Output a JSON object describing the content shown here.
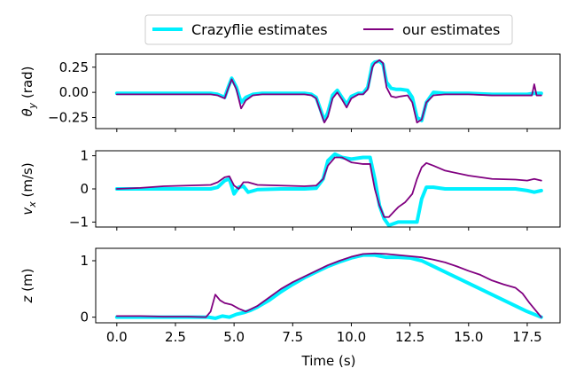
{
  "colors": {
    "crazyflie": "#00f0ff",
    "ours": "#800080"
  },
  "legend": {
    "crazyflie_label": "Crazyflie estimates",
    "ours_label": "our estimates"
  },
  "xlabel": "Time (s)",
  "chart_data": [
    {
      "type": "line",
      "ylabel": "θ_y (rad)",
      "ylabel_main": "θ",
      "ylabel_sub": "y",
      "ylabel_unit": " (rad)",
      "xlim": [
        -0.9,
        18.9
      ],
      "ylim": [
        -0.36,
        0.38
      ],
      "xticks": [
        0.0,
        2.5,
        5.0,
        7.5,
        10.0,
        12.5,
        15.0,
        17.5
      ],
      "yticks": [
        0.25,
        0.0,
        -0.25
      ],
      "ytick_labels": [
        "0.25",
        "0.00",
        "−0.25"
      ],
      "show_xtick_labels": false,
      "series": [
        {
          "name": "Crazyflie estimates",
          "x": [
            0.0,
            4.0,
            4.3,
            4.6,
            4.75,
            4.9,
            5.1,
            5.3,
            5.5,
            5.8,
            6.2,
            6.6,
            7.0,
            7.5,
            8.0,
            8.3,
            8.5,
            8.7,
            8.85,
            9.0,
            9.2,
            9.4,
            9.6,
            9.8,
            10.0,
            10.3,
            10.5,
            10.7,
            10.9,
            11.0,
            11.2,
            11.35,
            11.5,
            11.7,
            11.9,
            12.1,
            12.4,
            12.6,
            12.8,
            13.0,
            13.2,
            13.5,
            14.0,
            15.0,
            16.0,
            17.0,
            17.5,
            17.8,
            18.1
          ],
          "y": [
            -0.01,
            -0.01,
            -0.02,
            -0.05,
            0.05,
            0.14,
            0.05,
            -0.1,
            -0.05,
            -0.02,
            -0.01,
            -0.01,
            -0.01,
            -0.01,
            -0.01,
            -0.02,
            -0.05,
            -0.18,
            -0.28,
            -0.2,
            -0.03,
            0.02,
            -0.05,
            -0.12,
            -0.04,
            -0.01,
            -0.01,
            0.05,
            0.28,
            0.3,
            0.31,
            0.28,
            0.1,
            0.04,
            0.03,
            0.03,
            0.02,
            -0.05,
            -0.25,
            -0.28,
            -0.1,
            0.0,
            -0.01,
            -0.01,
            -0.02,
            -0.02,
            -0.02,
            -0.01,
            -0.01
          ]
        },
        {
          "name": "our estimates",
          "x": [
            0.0,
            4.0,
            4.3,
            4.6,
            4.75,
            4.9,
            5.1,
            5.3,
            5.5,
            5.8,
            6.2,
            6.6,
            7.0,
            7.5,
            8.0,
            8.3,
            8.5,
            8.7,
            8.85,
            9.0,
            9.2,
            9.4,
            9.6,
            9.8,
            10.0,
            10.3,
            10.5,
            10.7,
            10.9,
            11.0,
            11.2,
            11.35,
            11.5,
            11.7,
            11.9,
            12.1,
            12.4,
            12.6,
            12.8,
            13.0,
            13.2,
            13.5,
            14.0,
            15.0,
            16.0,
            17.0,
            17.5,
            17.7,
            17.8,
            17.9,
            18.1
          ],
          "y": [
            -0.02,
            -0.02,
            -0.03,
            -0.06,
            0.04,
            0.13,
            0.03,
            -0.16,
            -0.08,
            -0.03,
            -0.02,
            -0.02,
            -0.02,
            -0.02,
            -0.02,
            -0.03,
            -0.06,
            -0.2,
            -0.3,
            -0.24,
            -0.06,
            0.0,
            -0.07,
            -0.15,
            -0.06,
            -0.02,
            -0.02,
            0.03,
            0.25,
            0.29,
            0.32,
            0.29,
            0.05,
            -0.04,
            -0.05,
            -0.04,
            -0.03,
            -0.1,
            -0.3,
            -0.27,
            -0.1,
            -0.03,
            -0.02,
            -0.02,
            -0.03,
            -0.03,
            -0.03,
            -0.03,
            0.08,
            -0.03,
            -0.03
          ]
        }
      ]
    },
    {
      "type": "line",
      "ylabel": "v_x (m/s)",
      "ylabel_main": "v",
      "ylabel_sub": "x",
      "ylabel_unit": " (m/s)",
      "xlim": [
        -0.9,
        18.9
      ],
      "ylim": [
        -1.15,
        1.15
      ],
      "xticks": [
        0.0,
        2.5,
        5.0,
        7.5,
        10.0,
        12.5,
        15.0,
        17.5
      ],
      "yticks": [
        1,
        0,
        -1
      ],
      "ytick_labels": [
        "1",
        "0",
        "−1"
      ],
      "show_xtick_labels": false,
      "series": [
        {
          "name": "Crazyflie estimates",
          "x": [
            0.0,
            3.0,
            4.0,
            4.3,
            4.6,
            4.8,
            5.0,
            5.2,
            5.4,
            5.6,
            6.0,
            7.0,
            8.0,
            8.5,
            8.8,
            9.0,
            9.3,
            9.6,
            10.0,
            10.5,
            10.8,
            11.0,
            11.2,
            11.4,
            11.6,
            11.8,
            12.0,
            12.3,
            12.6,
            12.8,
            13.0,
            13.2,
            13.5,
            14.0,
            15.0,
            16.0,
            17.0,
            17.5,
            17.8,
            18.1
          ],
          "y": [
            0.0,
            0.0,
            0.0,
            0.05,
            0.25,
            0.3,
            -0.15,
            0.05,
            0.08,
            -0.1,
            -0.02,
            0.0,
            0.0,
            0.02,
            0.3,
            0.85,
            1.05,
            0.95,
            0.9,
            0.95,
            0.95,
            0.3,
            -0.5,
            -0.9,
            -1.1,
            -1.05,
            -1.0,
            -1.0,
            -1.0,
            -1.0,
            -0.3,
            0.05,
            0.05,
            0.0,
            0.0,
            0.0,
            0.0,
            -0.05,
            -0.1,
            -0.05
          ]
        },
        {
          "name": "our estimates",
          "x": [
            0.0,
            1.0,
            2.0,
            3.0,
            4.0,
            4.3,
            4.6,
            4.8,
            5.0,
            5.2,
            5.4,
            5.6,
            6.0,
            7.0,
            8.0,
            8.5,
            8.8,
            9.0,
            9.3,
            9.6,
            10.0,
            10.5,
            10.8,
            11.0,
            11.2,
            11.4,
            11.6,
            11.8,
            12.0,
            12.3,
            12.6,
            12.8,
            13.0,
            13.2,
            13.5,
            14.0,
            15.0,
            16.0,
            17.0,
            17.5,
            17.8,
            18.1
          ],
          "y": [
            0.0,
            0.03,
            0.08,
            0.1,
            0.12,
            0.2,
            0.35,
            0.38,
            0.1,
            0.0,
            0.2,
            0.2,
            0.12,
            0.1,
            0.08,
            0.1,
            0.3,
            0.7,
            0.95,
            0.95,
            0.8,
            0.75,
            0.75,
            0.0,
            -0.5,
            -0.85,
            -0.85,
            -0.7,
            -0.55,
            -0.4,
            -0.15,
            0.3,
            0.65,
            0.78,
            0.7,
            0.55,
            0.4,
            0.3,
            0.28,
            0.25,
            0.3,
            0.25
          ]
        }
      ]
    },
    {
      "type": "line",
      "ylabel": "z (m)",
      "ylabel_main": "z",
      "ylabel_sub": "",
      "ylabel_unit": " (m)",
      "xlim": [
        -0.9,
        18.9
      ],
      "ylim": [
        -0.1,
        1.22
      ],
      "xticks": [
        0.0,
        2.5,
        5.0,
        7.5,
        10.0,
        12.5,
        15.0,
        17.5
      ],
      "xtick_labels": [
        "0.0",
        "2.5",
        "5.0",
        "7.5",
        "10.0",
        "12.5",
        "15.0",
        "17.5"
      ],
      "yticks": [
        1,
        0
      ],
      "ytick_labels": [
        "1",
        "0"
      ],
      "show_xtick_labels": true,
      "series": [
        {
          "name": "Crazyflie estimates",
          "x": [
            0.0,
            2.0,
            3.9,
            4.2,
            4.5,
            4.8,
            5.1,
            5.4,
            5.7,
            6.0,
            6.5,
            7.0,
            7.5,
            8.0,
            8.5,
            9.0,
            9.5,
            10.0,
            10.5,
            11.0,
            11.5,
            12.0,
            12.5,
            13.0,
            13.5,
            14.0,
            14.5,
            15.0,
            15.5,
            16.0,
            16.5,
            17.0,
            17.5,
            17.8,
            18.1
          ],
          "y": [
            0.0,
            0.0,
            0.0,
            -0.02,
            0.02,
            0.0,
            0.05,
            0.08,
            0.12,
            0.18,
            0.3,
            0.45,
            0.58,
            0.7,
            0.8,
            0.9,
            0.98,
            1.05,
            1.1,
            1.1,
            1.06,
            1.06,
            1.05,
            1.0,
            0.9,
            0.8,
            0.7,
            0.6,
            0.5,
            0.4,
            0.3,
            0.2,
            0.1,
            0.05,
            0.0
          ]
        },
        {
          "name": "our estimates",
          "x": [
            0.0,
            1.0,
            2.0,
            3.0,
            3.8,
            4.0,
            4.2,
            4.4,
            4.6,
            4.9,
            5.2,
            5.5,
            6.0,
            6.5,
            7.0,
            7.5,
            8.0,
            8.5,
            9.0,
            9.5,
            10.0,
            10.5,
            11.0,
            11.5,
            12.0,
            12.5,
            13.0,
            13.5,
            14.0,
            14.5,
            15.0,
            15.5,
            16.0,
            16.5,
            17.0,
            17.3,
            17.6,
            17.9,
            18.1
          ],
          "y": [
            0.02,
            0.02,
            0.01,
            0.01,
            0.0,
            0.1,
            0.4,
            0.3,
            0.25,
            0.22,
            0.15,
            0.1,
            0.2,
            0.35,
            0.5,
            0.62,
            0.72,
            0.82,
            0.92,
            1.0,
            1.07,
            1.12,
            1.13,
            1.12,
            1.1,
            1.08,
            1.06,
            1.02,
            0.97,
            0.9,
            0.82,
            0.75,
            0.65,
            0.58,
            0.52,
            0.42,
            0.25,
            0.1,
            0.0
          ]
        }
      ]
    }
  ]
}
